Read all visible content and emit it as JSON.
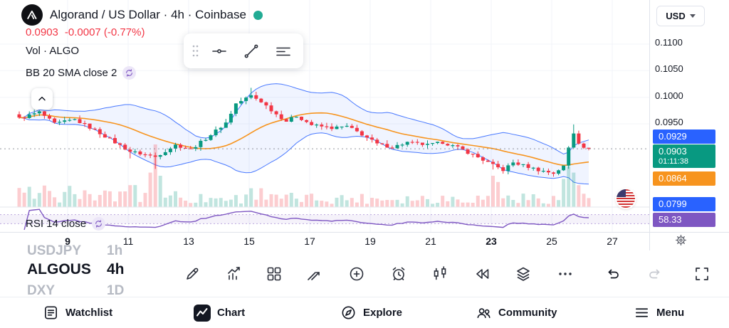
{
  "header": {
    "symbol_title": "Algorand / US Dollar · 4h · Coinbase",
    "price": "0.0903",
    "change": "-0.0007 (-0.77%)",
    "vol_label": "Vol · ALGO",
    "bb_label": "BB 20 SMA close 2",
    "rsi_label": "RSI 14 close",
    "currency": "USD"
  },
  "colors": {
    "up": "#089981",
    "down": "#f23645",
    "bb_line": "#2962ff",
    "bb_fill": "rgba(41,98,255,0.07)",
    "bb_basis": "#f7941e",
    "rsi": "#7e57c2",
    "last_line": "#787b86",
    "grid": "#f0f3fa",
    "text": "#131722"
  },
  "axis": {
    "price_labels": [
      "0.1100",
      "0.1050",
      "0.1000",
      "0.0950"
    ],
    "time_labels": [
      {
        "t": "9",
        "bold": true
      },
      {
        "t": "11",
        "bold": false
      },
      {
        "t": "13",
        "bold": false
      },
      {
        "t": "15",
        "bold": false
      },
      {
        "t": "17",
        "bold": false
      },
      {
        "t": "19",
        "bold": false
      },
      {
        "t": "21",
        "bold": false
      },
      {
        "t": "23",
        "bold": true
      },
      {
        "t": "25",
        "bold": false
      },
      {
        "t": "27",
        "bold": false
      }
    ],
    "badges": [
      {
        "text": "0.0929",
        "sub": "",
        "color": "#2962ff"
      },
      {
        "text": "0.0903",
        "sub": "01:11:38",
        "color": "#089981"
      },
      {
        "text": "0.0864",
        "sub": "",
        "color": "#f7941e"
      },
      {
        "text": "0.0799",
        "sub": "",
        "color": "#2962ff"
      },
      {
        "text": "58.33",
        "sub": "",
        "color": "#7e57c2"
      }
    ]
  },
  "watchlist_peek": [
    {
      "symbol": "USDJPY",
      "tf": "1h"
    },
    {
      "symbol": "ALGOUS",
      "tf": "4h"
    },
    {
      "symbol": "DXY",
      "tf": "1D"
    }
  ],
  "bottom_nav": [
    {
      "label": "Watchlist"
    },
    {
      "label": "Chart"
    },
    {
      "label": "Explore"
    },
    {
      "label": "Community"
    },
    {
      "label": "Menu"
    }
  ],
  "chart_data": {
    "type": "candlestick",
    "title": "Algorand / US Dollar · 4h · Coinbase",
    "symbol": "ALGOUSD",
    "exchange": "Coinbase",
    "timeframe": "4h",
    "last_price": 0.0903,
    "change": -0.0007,
    "change_pct": -0.77,
    "countdown": "01:11:38",
    "n_candles": 114,
    "price_axis_ticks": [
      0.11,
      0.105,
      0.1,
      0.095
    ],
    "time_axis_ticks": [
      9,
      11,
      13,
      15,
      17,
      19,
      21,
      23,
      25,
      27
    ],
    "price_anchors": [
      [
        0,
        0.096
      ],
      [
        4,
        0.0972
      ],
      [
        7,
        0.095
      ],
      [
        11,
        0.0958
      ],
      [
        15,
        0.0938
      ],
      [
        19,
        0.0915
      ],
      [
        22,
        0.0898
      ],
      [
        27,
        0.0888
      ],
      [
        31,
        0.091
      ],
      [
        34,
        0.0902
      ],
      [
        37,
        0.0922
      ],
      [
        41,
        0.0952
      ],
      [
        43,
        0.0988
      ],
      [
        46,
        0.1003
      ],
      [
        48,
        0.0992
      ],
      [
        51,
        0.0968
      ],
      [
        53,
        0.0955
      ],
      [
        55,
        0.0965
      ],
      [
        58,
        0.0948
      ],
      [
        62,
        0.0942
      ],
      [
        65,
        0.0945
      ],
      [
        68,
        0.093
      ],
      [
        71,
        0.0912
      ],
      [
        74,
        0.0906
      ],
      [
        77,
        0.0915
      ],
      [
        81,
        0.091
      ],
      [
        84,
        0.0915
      ],
      [
        87,
        0.0905
      ],
      [
        90,
        0.0892
      ],
      [
        94,
        0.0872
      ],
      [
        96,
        0.0863
      ],
      [
        98,
        0.0877
      ],
      [
        101,
        0.0869
      ],
      [
        103,
        0.0863
      ],
      [
        106,
        0.0857
      ],
      [
        108,
        0.087
      ],
      [
        109,
        0.0905
      ],
      [
        110,
        0.0933
      ],
      [
        111,
        0.0915
      ],
      [
        112,
        0.0907
      ],
      [
        113,
        0.0903
      ]
    ],
    "volume_spikes": {
      "22": 0.35,
      "26": 0.55,
      "27": 1,
      "28": 0.5,
      "46": 0.3,
      "48": 0.3,
      "94": 0.5,
      "95": 0.4,
      "108": 0.45,
      "109": 0.65,
      "110": 0.55,
      "111": 0.35
    },
    "wick_extends_low": {
      "22": 0.001,
      "27": 0.0016,
      "94": 0.0009
    },
    "wick_extends_high": {
      "46": 0.0008,
      "110": 0.0012
    },
    "indicators": {
      "bollinger": {
        "label": "BB 20 SMA close 2",
        "length": 20,
        "mult": 2,
        "upper": 0.0929,
        "basis": 0.0864,
        "lower": 0.0799
      },
      "rsi": {
        "label": "RSI 14 close",
        "length": 14,
        "value": 58.33,
        "upper_band": 70,
        "lower_band": 30
      },
      "volume": {
        "label": "Vol · ALGO"
      }
    }
  }
}
